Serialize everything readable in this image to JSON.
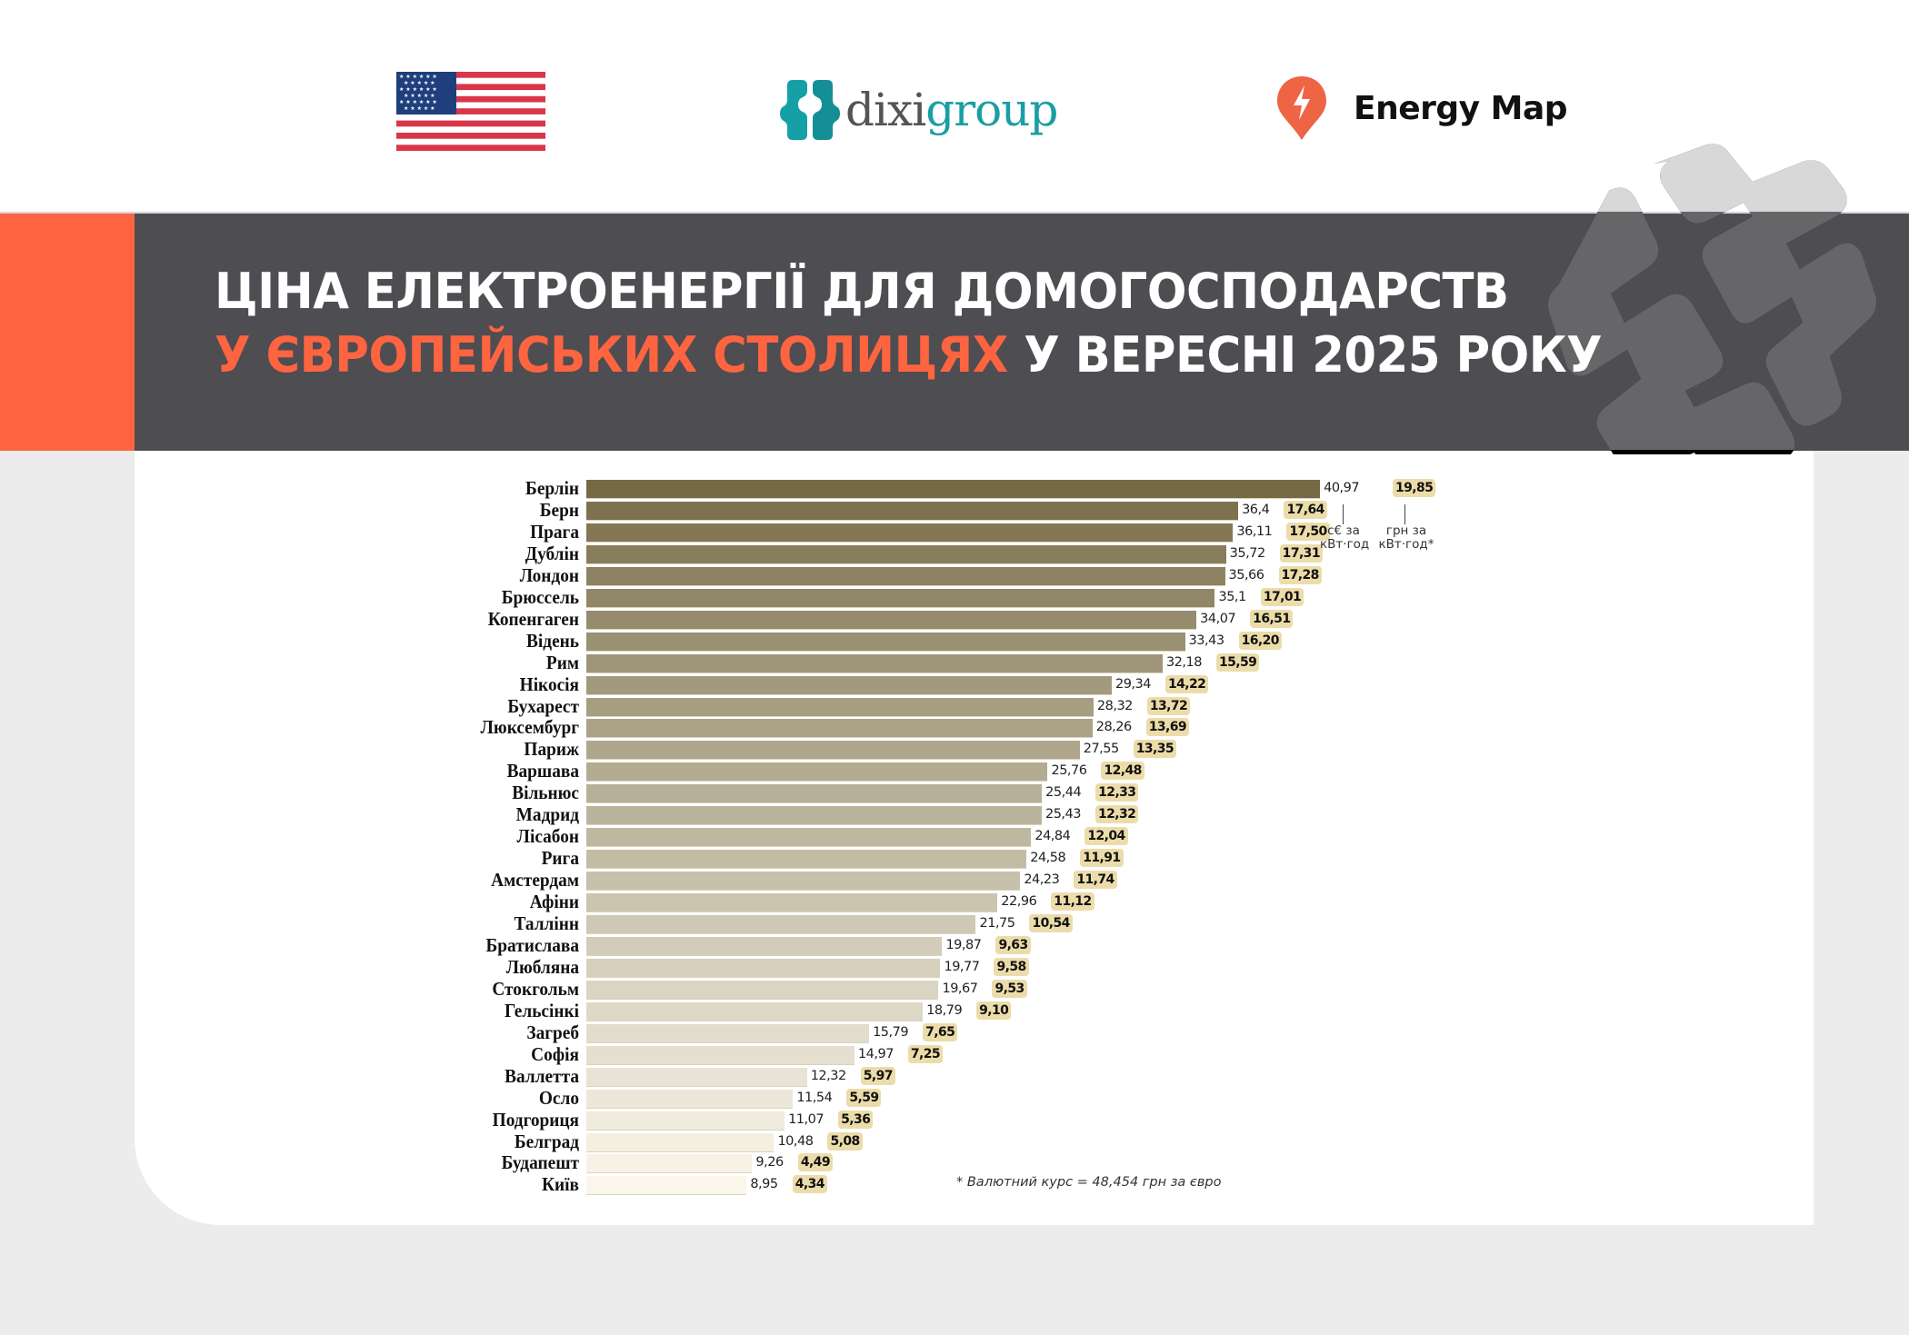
{
  "header": {
    "logos": {
      "flag": "us-flag-icon",
      "dixigroup": {
        "part1": "dixi",
        "part2": "group"
      },
      "energy_map": "Energy Map"
    },
    "title_line1": "ЦІНА ЕЛЕКТРОЕНЕРГІЇ ДЛЯ ДОМОГОСПОДАРСТВ",
    "title_line2_accent": "У ЄВРОПЕЙСЬКИХ СТОЛИЦЯХ",
    "title_line2_rest": " У ВЕРЕСНІ 2025 РОКУ"
  },
  "colors": {
    "accent": "#fe6440",
    "header_bg": "#4e4d52",
    "bar_darkest": "#766a45",
    "bar_lightest": "#faf6ea",
    "uah_badge": "#ecdca9",
    "page_bg": "#ececec"
  },
  "legend": {
    "eur_label_line1": "с€ за",
    "eur_label_line2": "кВт·год",
    "uah_label_line1": "грн за",
    "uah_label_line2": "кВт·год*"
  },
  "footnote": "* Валютний курс = 48,454 грн за євро",
  "chart_data": {
    "type": "bar",
    "orientation": "horizontal",
    "title": "Ціна електроенергії для домогосподарств у європейських столицях у вересні 2025 року",
    "xlabel": "",
    "ylabel": "",
    "grid": false,
    "categories": [
      "Берлін",
      "Берн",
      "Прага",
      "Дублін",
      "Лондон",
      "Брюссель",
      "Копенгаген",
      "Відень",
      "Рим",
      "Нікосія",
      "Бухарест",
      "Люксембург",
      "Париж",
      "Варшава",
      "Вільнюс",
      "Мадрид",
      "Лісабон",
      "Рига",
      "Амстердам",
      "Афіни",
      "Таллінн",
      "Братислава",
      "Любляна",
      "Стокгольм",
      "Гельсінкі",
      "Загреб",
      "Софія",
      "Валлетта",
      "Осло",
      "Подгориця",
      "Белград",
      "Будапешт",
      "Київ"
    ],
    "series": [
      {
        "name": "с€ за кВт·год",
        "values": [
          40.97,
          36.4,
          36.11,
          35.72,
          35.66,
          35.1,
          34.07,
          33.43,
          32.18,
          29.34,
          28.32,
          28.26,
          27.55,
          25.76,
          25.44,
          25.43,
          24.84,
          24.58,
          24.23,
          22.96,
          21.75,
          19.87,
          19.77,
          19.67,
          18.79,
          15.79,
          14.97,
          12.32,
          11.54,
          11.07,
          10.48,
          9.26,
          8.95
        ],
        "labels": [
          "40,97",
          "36,4",
          "36,11",
          "35,72",
          "35,66",
          "35,1",
          "34,07",
          "33,43",
          "32,18",
          "29,34",
          "28,32",
          "28,26",
          "27,55",
          "25,76",
          "25,44",
          "25,43",
          "24,84",
          "24,58",
          "24,23",
          "22,96",
          "21,75",
          "19,87",
          "19,77",
          "19,67",
          "18,79",
          "15,79",
          "14,97",
          "12,32",
          "11,54",
          "11,07",
          "10,48",
          "9,26",
          "8,95"
        ]
      },
      {
        "name": "грн за кВт·год*",
        "values": [
          19.85,
          17.64,
          17.5,
          17.31,
          17.28,
          17.01,
          16.51,
          16.2,
          15.59,
          14.22,
          13.72,
          13.69,
          13.35,
          12.48,
          12.33,
          12.32,
          12.04,
          11.91,
          11.74,
          11.12,
          10.54,
          9.63,
          9.58,
          9.53,
          9.1,
          7.65,
          7.25,
          5.97,
          5.59,
          5.36,
          5.08,
          4.49,
          4.34
        ],
        "labels": [
          "19,85",
          "17,64",
          "17,50",
          "17,31",
          "17,28",
          "17,01",
          "16,51",
          "16,20",
          "15,59",
          "14,22",
          "13,72",
          "13,69",
          "13,35",
          "12,48",
          "12,33",
          "12,32",
          "12,04",
          "11,91",
          "11,74",
          "11,12",
          "10,54",
          "9,63",
          "9,58",
          "9,53",
          "9,10",
          "7,65",
          "7,25",
          "5,97",
          "5,59",
          "5,36",
          "5,08",
          "4,49",
          "4,34"
        ]
      }
    ],
    "annotations": [
      "* Валютний курс = 48,454 грн за євро"
    ]
  }
}
